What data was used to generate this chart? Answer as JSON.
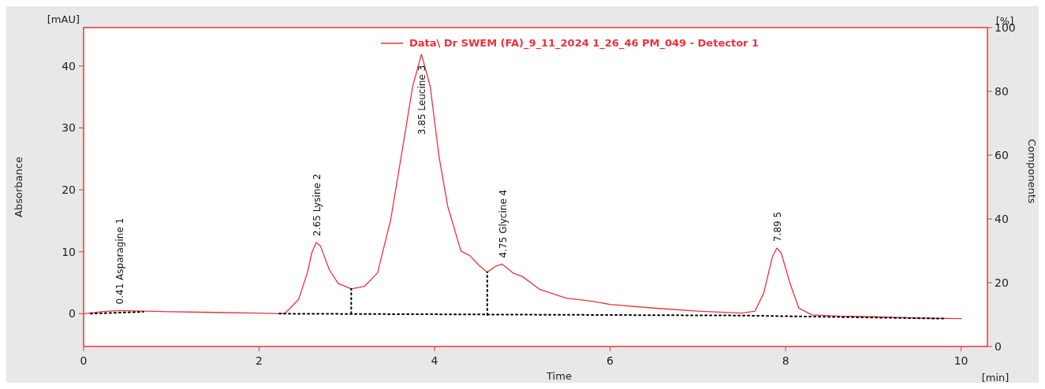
{
  "chart_data": {
    "type": "line",
    "xlabel": "Time",
    "ylabel": "Absorbance",
    "y2label": "Components",
    "xlim": [
      0,
      10.3
    ],
    "xticks": [
      0,
      2,
      4,
      6,
      8,
      10
    ],
    "ylim": [
      -5.3,
      46.2
    ],
    "yticks": [
      0,
      10,
      20,
      30,
      40
    ],
    "y2lim": [
      0,
      100
    ],
    "y2ticks": [
      0,
      20,
      40,
      60,
      80,
      100
    ],
    "legend": "top",
    "grid": false,
    "series": [
      {
        "name": "Data\\ Dr SWEM (FA)_9_11_2024 1_26_46 PM_049 - Detector 1",
        "color": "#f0303c",
        "x": [
          0,
          0.2,
          0.4,
          0.7,
          1.0,
          1.5,
          2.0,
          2.25,
          2.3,
          2.45,
          2.55,
          2.6,
          2.65,
          2.7,
          2.8,
          2.9,
          3.05,
          3.2,
          3.35,
          3.5,
          3.65,
          3.75,
          3.85,
          3.95,
          4.05,
          4.15,
          4.3,
          4.4,
          4.5,
          4.6,
          4.7,
          4.77,
          4.9,
          5.0,
          5.2,
          5.5,
          5.8,
          6.0,
          6.5,
          7.0,
          7.5,
          7.65,
          7.75,
          7.85,
          7.9,
          7.95,
          8.05,
          8.15,
          8.3,
          8.6,
          9.0,
          9.5,
          10.0
        ],
        "values": [
          0,
          0.3,
          0.5,
          0.4,
          0.3,
          0.2,
          0.1,
          0,
          0.1,
          2.3,
          6.6,
          9.8,
          11.5,
          10.9,
          7.1,
          4.9,
          4.0,
          4.4,
          6.6,
          15.2,
          28,
          36.7,
          41.9,
          36.7,
          25.4,
          17.3,
          10.1,
          9.4,
          7.9,
          6.7,
          7.7,
          8.0,
          6.5,
          6.0,
          3.9,
          2.5,
          2.0,
          1.5,
          0.9,
          0.4,
          0.1,
          0.4,
          3.3,
          9.2,
          10.6,
          9.8,
          4.9,
          0.9,
          -0.2,
          -0.4,
          -0.5,
          -0.7,
          -0.8
        ]
      },
      {
        "color": "#000000",
        "line_style": "dotted",
        "x": [
          0.08,
          0.68
        ],
        "values": [
          0,
          0.3
        ]
      },
      {
        "color": "#000000",
        "line_style": "dotted",
        "x": [
          2.23,
          7.5,
          9.8
        ],
        "values": [
          0,
          -0.3,
          -0.8
        ]
      },
      {
        "color": "#000000",
        "line_style": "dotted",
        "x": [
          3.05,
          3.05
        ],
        "values": [
          0,
          4.0
        ]
      },
      {
        "color": "#000000",
        "line_style": "dotted",
        "x": [
          4.6,
          4.6
        ],
        "values": [
          -0.2,
          6.7
        ]
      }
    ],
    "annotations": [
      {
        "text": "0.41 Asparagine  1",
        "x": 0.4,
        "y": 0.5
      },
      {
        "text": "2.65 Lysine  2",
        "x": 2.65,
        "y": 11.5
      },
      {
        "text": "3.85 Leucine  3",
        "x": 3.85,
        "y": 41.9
      },
      {
        "text": "4.75 Glycine  4",
        "x": 4.77,
        "y": 8.0
      },
      {
        "text": "7.89  5",
        "x": 7.9,
        "y": 10.6
      },
      "[mAU]",
      "[%]",
      "[min]"
    ]
  }
}
